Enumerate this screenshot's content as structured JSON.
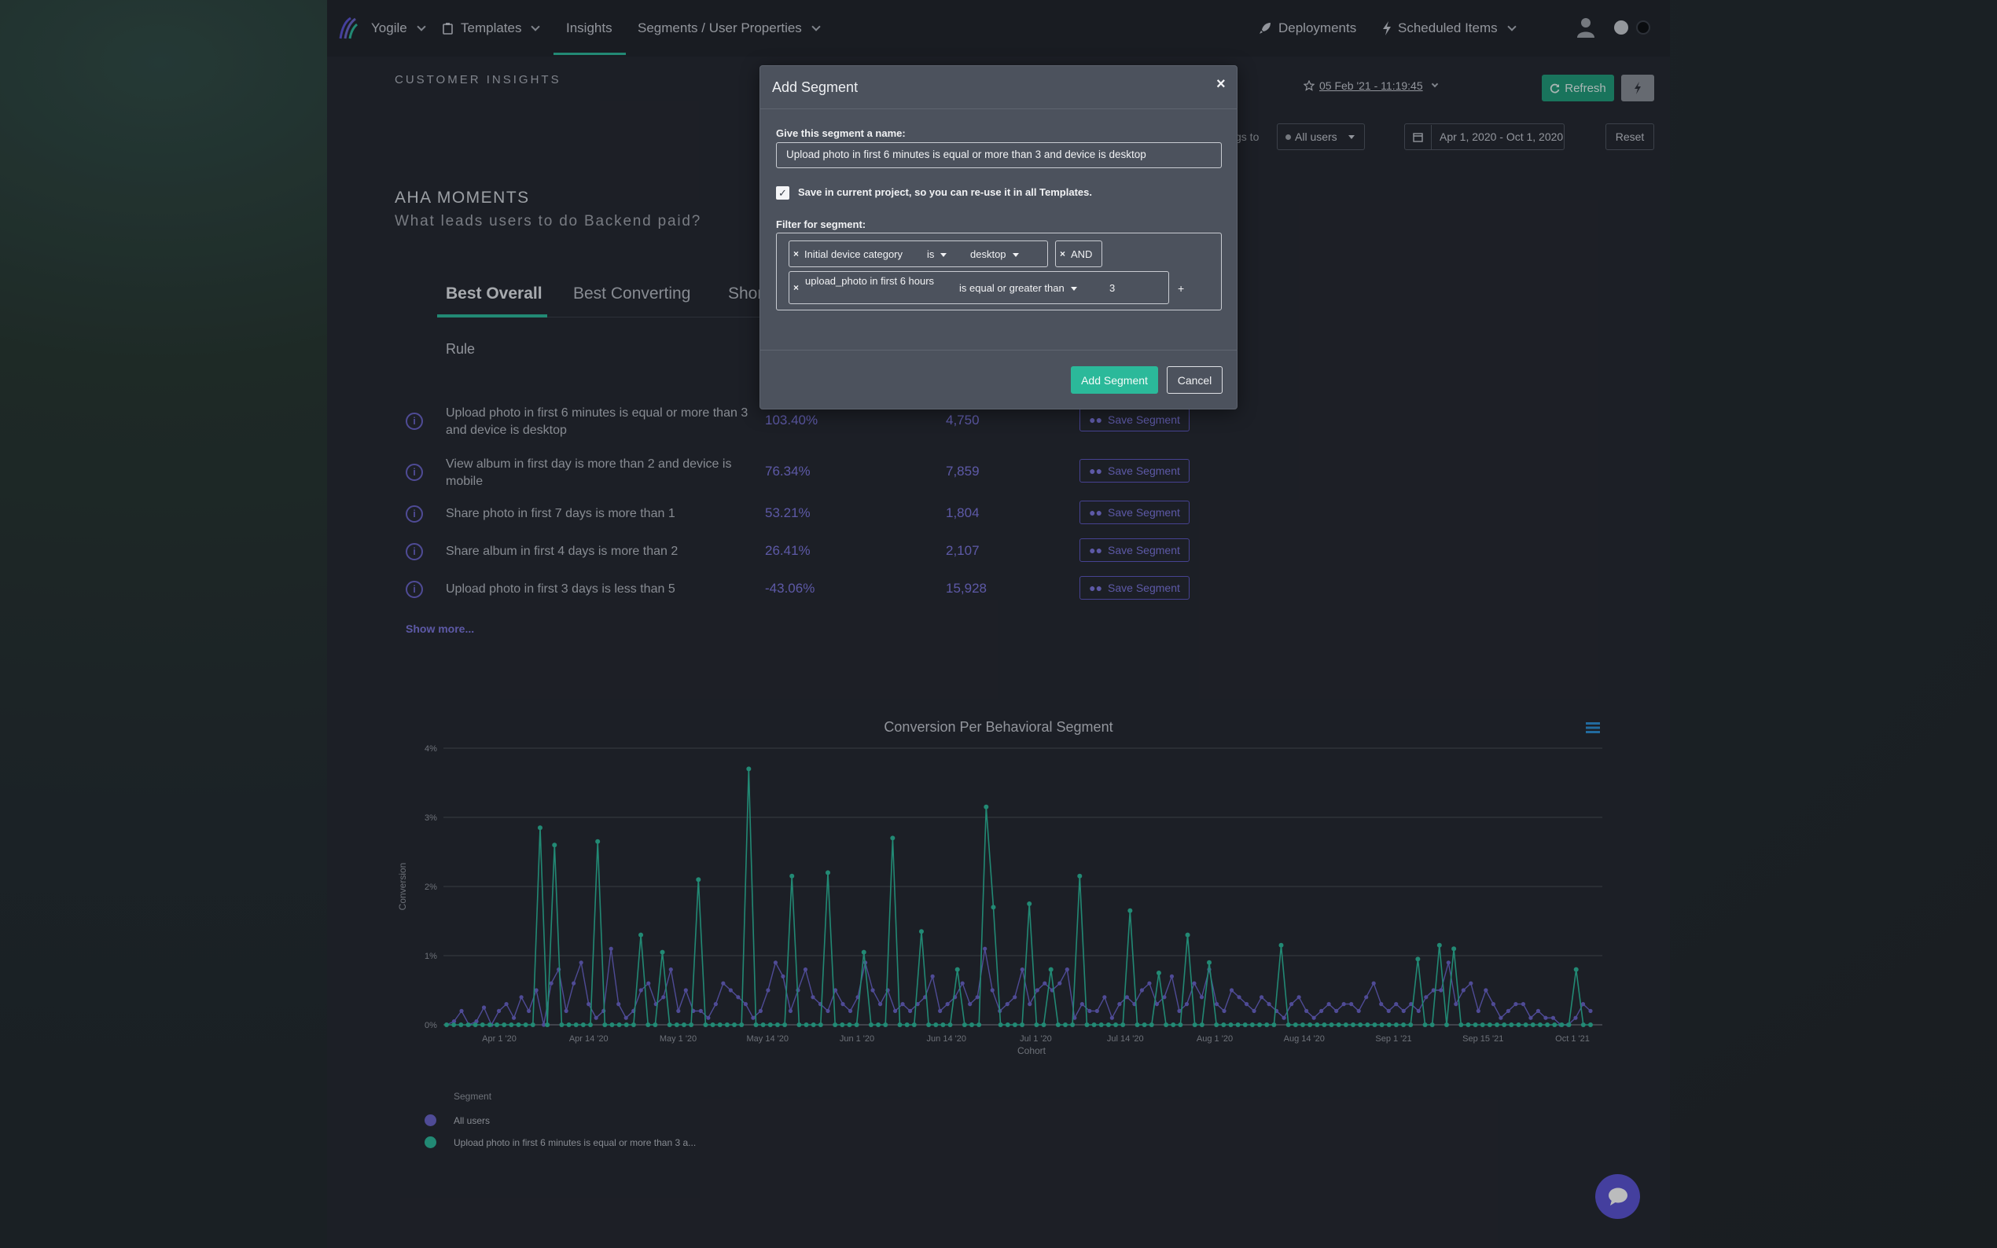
{
  "nav": {
    "brand": "Yogile",
    "templates": "Templates",
    "insights": "Insights",
    "segments": "Segments / User Properties",
    "deployments": "Deployments",
    "scheduled": "Scheduled Items"
  },
  "header": {
    "section_label": "CUSTOMER INSIGHTS",
    "timestamp": "05 Feb '21 - 11:19:45",
    "refresh_label": "Refresh",
    "compare_prefix": "gs to",
    "audience_value": "All users",
    "date_range": "Apr 1, 2020 - Oct 1, 2020",
    "reset_label": "Reset"
  },
  "aha": {
    "title": "AHA MOMENTS",
    "subtitle": "What leads users to do Backend paid?"
  },
  "tabs": [
    {
      "label": "Best Overall"
    },
    {
      "label": "Best Converting"
    },
    {
      "label": "Shor"
    }
  ],
  "table": {
    "rule_header": "Rule",
    "rows": [
      {
        "rule": "Upload photo in first 6 minutes is equal or more than 3 and device is desktop",
        "pct": "103.40%",
        "count": "4,750",
        "action": "Save Segment"
      },
      {
        "rule": "View album in first day is more than 2 and device is mobile",
        "pct": "76.34%",
        "count": "7,859",
        "action": "Save Segment"
      },
      {
        "rule": "Share photo in first 7 days is more than 1",
        "pct": "53.21%",
        "count": "1,804",
        "action": "Save Segment"
      },
      {
        "rule": "Share album in first 4 days is more than 2",
        "pct": "26.41%",
        "count": "2,107",
        "action": "Save Segment"
      },
      {
        "rule": "Upload photo in first 3 days is less than 5",
        "pct": "-43.06%",
        "count": "15,928",
        "action": "Save Segment"
      }
    ],
    "show_more": "Show more..."
  },
  "modal": {
    "title": "Add Segment",
    "close": "×",
    "name_label": "Give this segment a name:",
    "name_value": "Upload photo in first 6 minutes is equal or more than 3 and device is desktop",
    "save_checkbox_label": "Save in current project, so you can re-use it in all Templates.",
    "filter_label": "Filter for segment:",
    "filter1": {
      "field": "Initial device category",
      "op": "is",
      "value": "desktop"
    },
    "and_label": "AND",
    "filter2": {
      "field": "upload_photo in first 6 hours",
      "op": "is equal or greater than",
      "value": "3"
    },
    "add_plus": "+",
    "add_button": "Add Segment",
    "cancel_button": "Cancel"
  },
  "colors": {
    "accent_green": "#2bb99a",
    "accent_purple": "#6a63c9"
  },
  "chart_data": {
    "type": "line",
    "title": "Conversion Per Behavioral Segment",
    "xlabel": "Cohort",
    "ylabel": "Conversion",
    "ylim": [
      0,
      4
    ],
    "yticks": [
      "0%",
      "1%",
      "2%",
      "3%",
      "4%"
    ],
    "xtick_labels": [
      "Apr 1 '20",
      "Apr 14 '20",
      "May 1 '20",
      "May 14 '20",
      "Jun 1 '20",
      "Jun 14 '20",
      "Jul 1 '20",
      "Jul 14 '20",
      "Aug 1 '20",
      "Aug 14 '20",
      "Sep 1 '21",
      "Sep 15 '21",
      "Oct 1 '21"
    ],
    "legend_title": "Segment",
    "series": [
      {
        "name": "All users",
        "color": "#6a63c9",
        "values": [
          0,
          0.05,
          0.2,
          0,
          0.05,
          0.25,
          0,
          0.2,
          0.3,
          0.1,
          0.4,
          0.2,
          0.5,
          0,
          0.6,
          0.8,
          0.2,
          0.6,
          0.9,
          0.3,
          0.1,
          0.2,
          1.1,
          0.3,
          0.1,
          0.2,
          0.5,
          0.6,
          0.3,
          0.4,
          0.8,
          0.2,
          0.5,
          0.2,
          0.2,
          0.1,
          0.3,
          0.6,
          0.5,
          0.4,
          0.3,
          0.1,
          0.2,
          0.5,
          0.9,
          0.7,
          0.2,
          0.5,
          0.8,
          0.4,
          0.3,
          0.2,
          0.5,
          0.3,
          0.2,
          0.4,
          0.9,
          0.5,
          0.3,
          0.5,
          0.2,
          0.3,
          0.2,
          0.3,
          0.4,
          0.7,
          0.2,
          0.3,
          0.4,
          0.6,
          0.3,
          0.4,
          1.1,
          0.5,
          0.2,
          0.3,
          0.4,
          0.8,
          0.3,
          0.5,
          0.6,
          0.5,
          0.6,
          0.8,
          0.1,
          0.3,
          0.2,
          0.2,
          0.4,
          0.1,
          0.3,
          0.4,
          0.3,
          0.5,
          0.6,
          0.3,
          0.4,
          0.7,
          0.2,
          0.3,
          0.6,
          0.4,
          0.8,
          0.3,
          0.2,
          0.5,
          0.4,
          0.3,
          0.2,
          0.4,
          0.3,
          0.2,
          0.1,
          0.3,
          0.4,
          0.2,
          0.1,
          0.2,
          0.3,
          0.2,
          0.3,
          0.3,
          0.2,
          0.4,
          0.6,
          0.3,
          0.2,
          0.3,
          0.2,
          0.3,
          0.2,
          0.4,
          0.5,
          0.5,
          0.9,
          0.3,
          0.5,
          0.6,
          0.2,
          0.5,
          0.3,
          0.1,
          0.2,
          0.3,
          0.3,
          0.1,
          0.2,
          0.1,
          0.1,
          0,
          0,
          0.1,
          0.3,
          0.2
        ],
        "range_note": "daily cohorts Apr 2020 - Oct 2021"
      },
      {
        "name": "Upload photo in first 6 minutes is equal or more than 3 a...",
        "color": "#2bb99a",
        "spikes": [
          [
            13,
            2.85
          ],
          [
            15,
            2.6
          ],
          [
            21,
            2.65
          ],
          [
            27,
            1.3
          ],
          [
            30,
            1.05
          ],
          [
            35,
            2.1
          ],
          [
            42,
            3.7
          ],
          [
            48,
            2.15
          ],
          [
            53,
            2.2
          ],
          [
            58,
            1.05
          ],
          [
            62,
            2.7
          ],
          [
            66,
            1.35
          ],
          [
            71,
            0.8
          ],
          [
            75,
            3.15
          ],
          [
            76,
            1.7
          ],
          [
            81,
            1.75
          ],
          [
            84,
            0.8
          ],
          [
            88,
            2.15
          ],
          [
            95,
            1.65
          ],
          [
            99,
            0.75
          ],
          [
            103,
            1.3
          ],
          [
            106,
            0.9
          ],
          [
            116,
            1.15
          ],
          [
            135,
            0.95
          ],
          [
            138,
            1.15
          ],
          [
            140,
            1.1
          ],
          [
            157,
            0.8
          ]
        ],
        "n_points": 160
      }
    ]
  }
}
